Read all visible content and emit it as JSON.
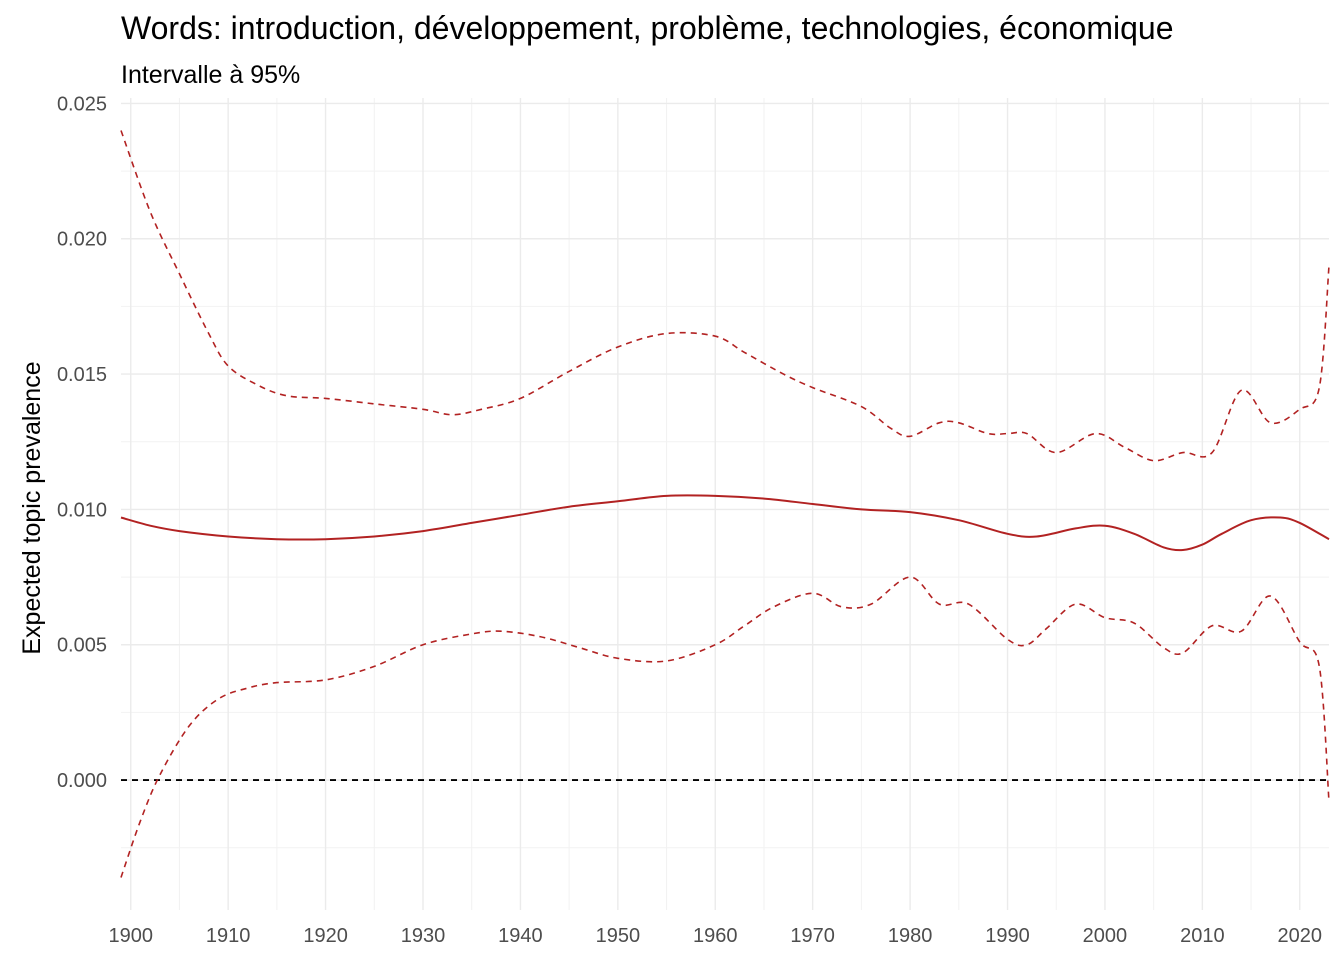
{
  "chart_data": {
    "type": "line",
    "title": "Words: introduction, développement, problème, technologies, économique",
    "subtitle": "Intervalle à 95%",
    "xlabel": "",
    "ylabel": "Expected topic prevalence",
    "xlim": [
      1899,
      2023
    ],
    "ylim": [
      -0.0048,
      0.0252
    ],
    "x_ticks": [
      1900,
      1910,
      1920,
      1930,
      1940,
      1950,
      1960,
      1970,
      1980,
      1990,
      2000,
      2010,
      2020
    ],
    "y_ticks": [
      "0.000",
      "0.005",
      "0.010",
      "0.015",
      "0.020",
      "0.025"
    ],
    "y_tick_values": [
      0,
      0.005,
      0.01,
      0.015,
      0.02,
      0.025
    ],
    "grid": true,
    "line_color": "#b22222",
    "reference_line": {
      "y": 0,
      "color": "#000000",
      "style": "dashed"
    },
    "series": [
      {
        "role": "estimate",
        "style": "solid",
        "x": [
          1899,
          1902,
          1905,
          1910,
          1915,
          1920,
          1925,
          1930,
          1935,
          1940,
          1945,
          1950,
          1955,
          1960,
          1965,
          1970,
          1975,
          1980,
          1985,
          1990,
          1993,
          1997,
          2000,
          2003,
          2006,
          2008,
          2010,
          2012,
          2015,
          2018,
          2020,
          2023
        ],
        "y": [
          0.0097,
          0.0094,
          0.0092,
          0.009,
          0.0089,
          0.0089,
          0.009,
          0.0092,
          0.0095,
          0.0098,
          0.0101,
          0.0103,
          0.0105,
          0.0105,
          0.0104,
          0.0102,
          0.01,
          0.0099,
          0.0096,
          0.0091,
          0.009,
          0.0093,
          0.0094,
          0.0091,
          0.0086,
          0.0085,
          0.0087,
          0.0091,
          0.0096,
          0.0097,
          0.0095,
          0.0089
        ]
      },
      {
        "role": "upper",
        "style": "dashed",
        "x": [
          1899,
          1902,
          1905,
          1908,
          1910,
          1913,
          1916,
          1920,
          1925,
          1930,
          1933,
          1936,
          1940,
          1945,
          1950,
          1955,
          1960,
          1963,
          1967,
          1970,
          1975,
          1978,
          1980,
          1983,
          1985,
          1988,
          1990,
          1992,
          1995,
          1999,
          2002,
          2005,
          2008,
          2011,
          2014,
          2017,
          2020,
          2022,
          2023
        ],
        "y": [
          0.024,
          0.021,
          0.0187,
          0.0165,
          0.0153,
          0.0146,
          0.0142,
          0.0141,
          0.0139,
          0.0137,
          0.0135,
          0.0137,
          0.0141,
          0.0151,
          0.016,
          0.0165,
          0.0164,
          0.0158,
          0.015,
          0.0145,
          0.0138,
          0.013,
          0.0127,
          0.0132,
          0.0132,
          0.0128,
          0.0128,
          0.0128,
          0.0121,
          0.0128,
          0.0123,
          0.0118,
          0.0121,
          0.0121,
          0.0144,
          0.0132,
          0.0137,
          0.0145,
          0.019
        ]
      },
      {
        "role": "lower",
        "style": "dashed",
        "x": [
          1899,
          1901,
          1903,
          1906,
          1909,
          1912,
          1915,
          1920,
          1925,
          1930,
          1935,
          1938,
          1942,
          1946,
          1950,
          1955,
          1960,
          1963,
          1966,
          1970,
          1973,
          1976,
          1980,
          1983,
          1986,
          1990,
          1992,
          1994,
          1997,
          2000,
          2003,
          2006,
          2008,
          2011,
          2014,
          2017,
          2020,
          2022,
          2023
        ],
        "y": [
          -0.0036,
          -0.0015,
          0.0002,
          0.002,
          0.003,
          0.0034,
          0.0036,
          0.0037,
          0.0042,
          0.005,
          0.0054,
          0.0055,
          0.0053,
          0.0049,
          0.0045,
          0.0044,
          0.005,
          0.0057,
          0.0064,
          0.0069,
          0.0064,
          0.0065,
          0.0075,
          0.0065,
          0.0065,
          0.0052,
          0.005,
          0.0056,
          0.0065,
          0.006,
          0.0058,
          0.0049,
          0.0047,
          0.0057,
          0.0055,
          0.0068,
          0.0051,
          0.0042,
          -0.0008
        ]
      }
    ]
  }
}
